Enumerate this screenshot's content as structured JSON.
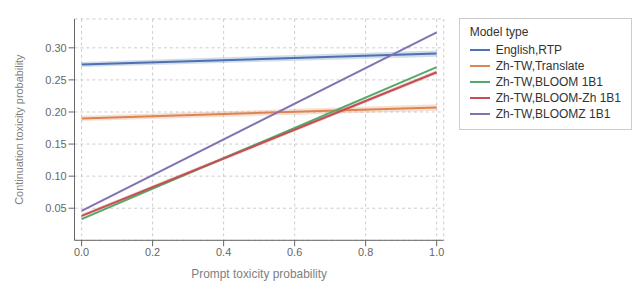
{
  "chart_data": {
    "type": "line",
    "xlabel": "Prompt toxicity probability",
    "ylabel": "Continuation toxicity probability",
    "legend_title": "Model type",
    "x": [
      0.0,
      1.0
    ],
    "xlim": [
      -0.02,
      1.02
    ],
    "ylim": [
      0.0,
      0.345
    ],
    "xticks": [
      {
        "value": 0.0,
        "label": "0.0"
      },
      0.2,
      0.4,
      0.6,
      0.8,
      {
        "value": 1.0,
        "label": "1.0"
      }
    ],
    "yticks": [
      0.05,
      {
        "value": 0.1,
        "label": "0.10"
      },
      0.15,
      {
        "value": 0.2,
        "label": "0.20"
      },
      0.25,
      {
        "value": 0.3,
        "label": "0.30"
      }
    ],
    "grid": true,
    "legend": "right",
    "series": [
      {
        "name": "English,RTP",
        "color": "#4C72B0",
        "values": [
          0.274,
          0.291
        ],
        "ci_upper": [
          0.278,
          0.296
        ],
        "ci_lower": [
          0.27,
          0.286
        ]
      },
      {
        "name": "Zh-TW,Translate",
        "color": "#DD8452",
        "values": [
          0.19,
          0.207
        ],
        "ci_upper": [
          0.194,
          0.212
        ],
        "ci_lower": [
          0.186,
          0.202
        ]
      },
      {
        "name": "Zh-TW,BLOOM 1B1",
        "color": "#55A868",
        "values": [
          0.033,
          0.27
        ]
      },
      {
        "name": "Zh-TW,BLOOM-Zh 1B1",
        "color": "#C44E52",
        "values": [
          0.038,
          0.262
        ],
        "ci_upper": [
          0.041,
          0.265
        ],
        "ci_lower": [
          0.035,
          0.259
        ]
      },
      {
        "name": "Zh-TW,BLOOMZ 1B1",
        "color": "#8172B2",
        "values": [
          0.046,
          0.324
        ]
      }
    ]
  }
}
